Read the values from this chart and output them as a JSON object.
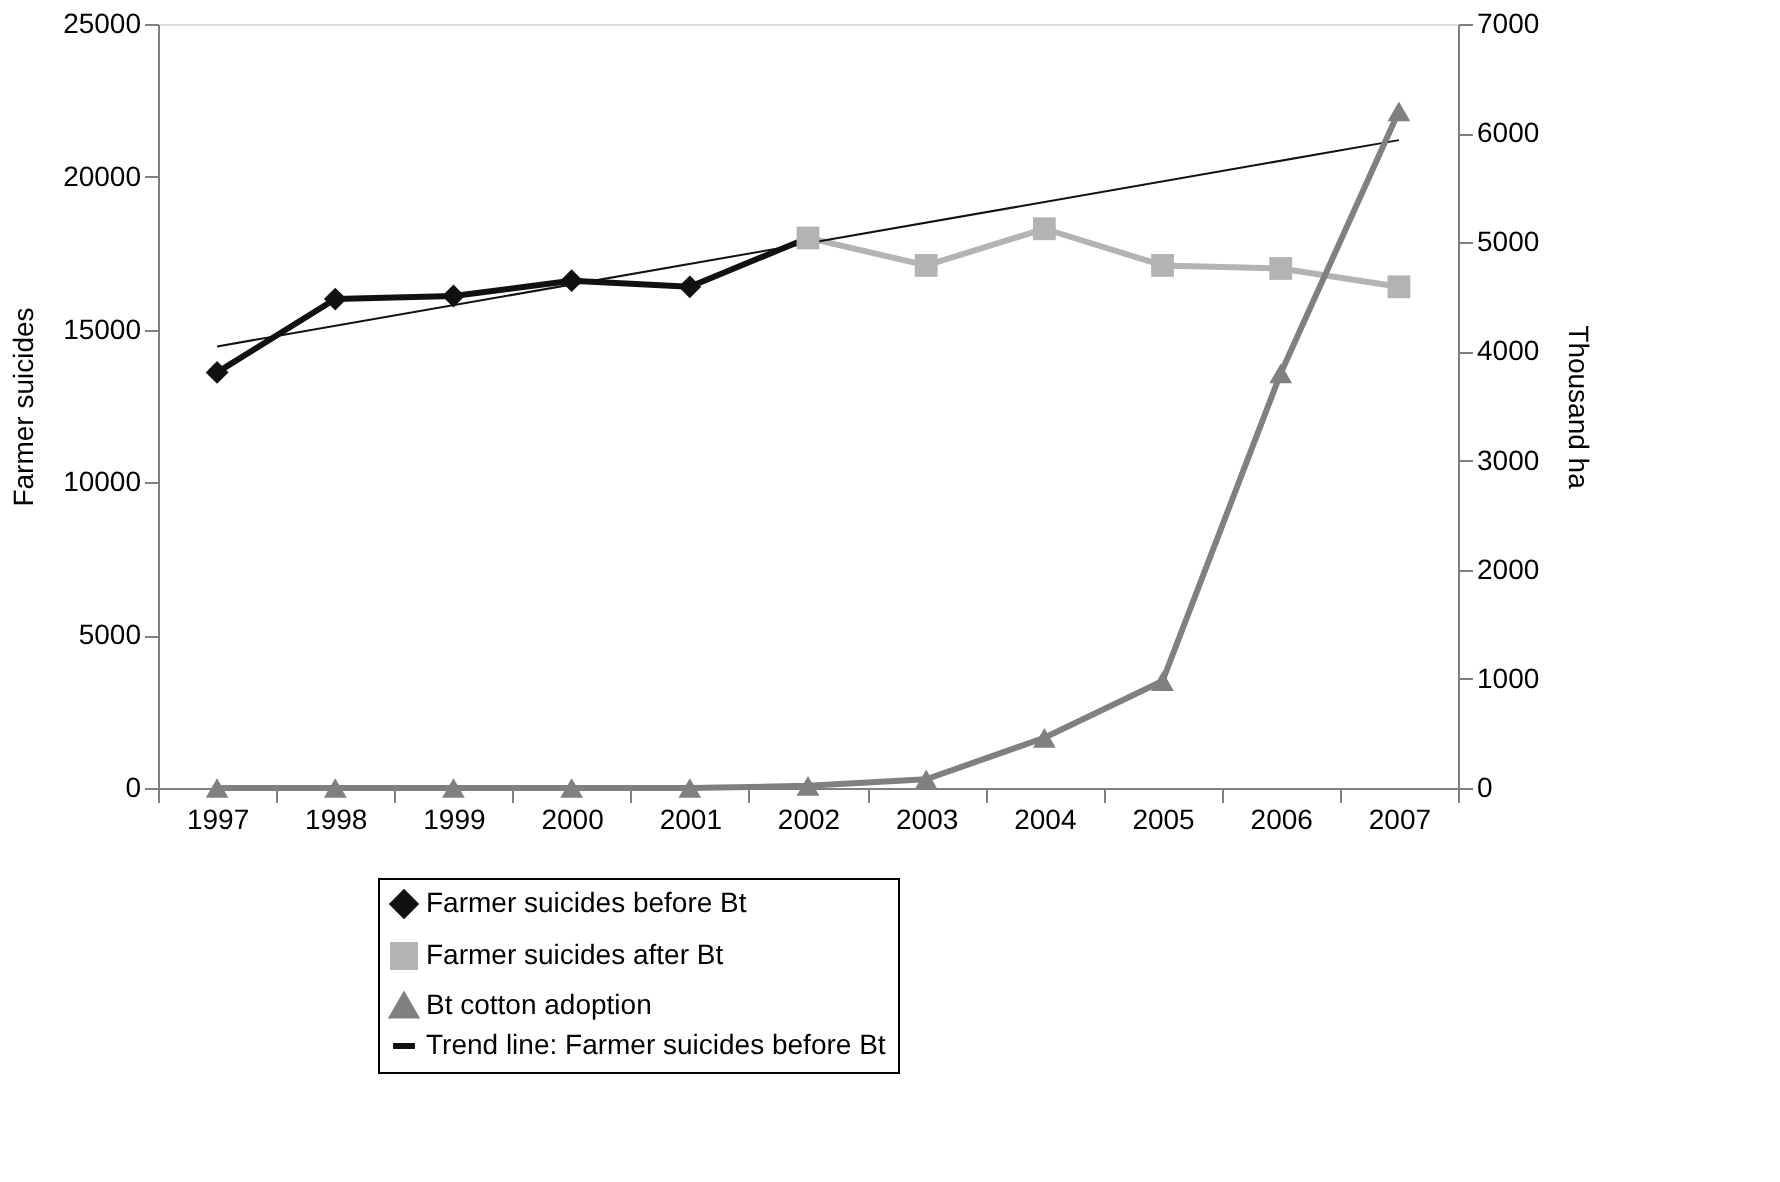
{
  "chart_data": {
    "type": "line",
    "ylabel": "Farmer suicides",
    "y2label": "Thousand ha",
    "categories": [
      "1997",
      "1998",
      "1999",
      "2000",
      "2001",
      "2002",
      "2003",
      "2004",
      "2005",
      "2006",
      "2007"
    ],
    "series": [
      {
        "name": "Farmer suicides before Bt",
        "color": "#111111",
        "marker": "diamond",
        "values": [
          13600,
          16000,
          16100,
          16600,
          16400,
          18000,
          null,
          null,
          null,
          null,
          null
        ]
      },
      {
        "name": "Farmer suicides after Bt",
        "color": "#b3b3b3",
        "marker": "square",
        "values": [
          null,
          null,
          null,
          null,
          null,
          18000,
          17100,
          18300,
          17100,
          17000,
          16400
        ]
      },
      {
        "name": "Bt cotton adoption",
        "color": "#808080",
        "marker": "triangle",
        "axis": "y2",
        "values": [
          0,
          0,
          0,
          0,
          0,
          20,
          80,
          460,
          980,
          3800,
          6200
        ]
      },
      {
        "name": "Trend line: Farmer suicides before Bt",
        "color": "#111111",
        "marker": "none",
        "values": [
          14450,
          null,
          null,
          null,
          null,
          null,
          null,
          null,
          null,
          null,
          21200
        ]
      }
    ],
    "ylim": [
      0,
      25000
    ],
    "yticks": [
      0,
      5000,
      10000,
      15000,
      20000,
      25000
    ],
    "y2lim": [
      0,
      7000
    ],
    "y2ticks": [
      0,
      1000,
      2000,
      3000,
      4000,
      5000,
      6000,
      7000
    ],
    "grid": false,
    "legend": "bottom"
  }
}
